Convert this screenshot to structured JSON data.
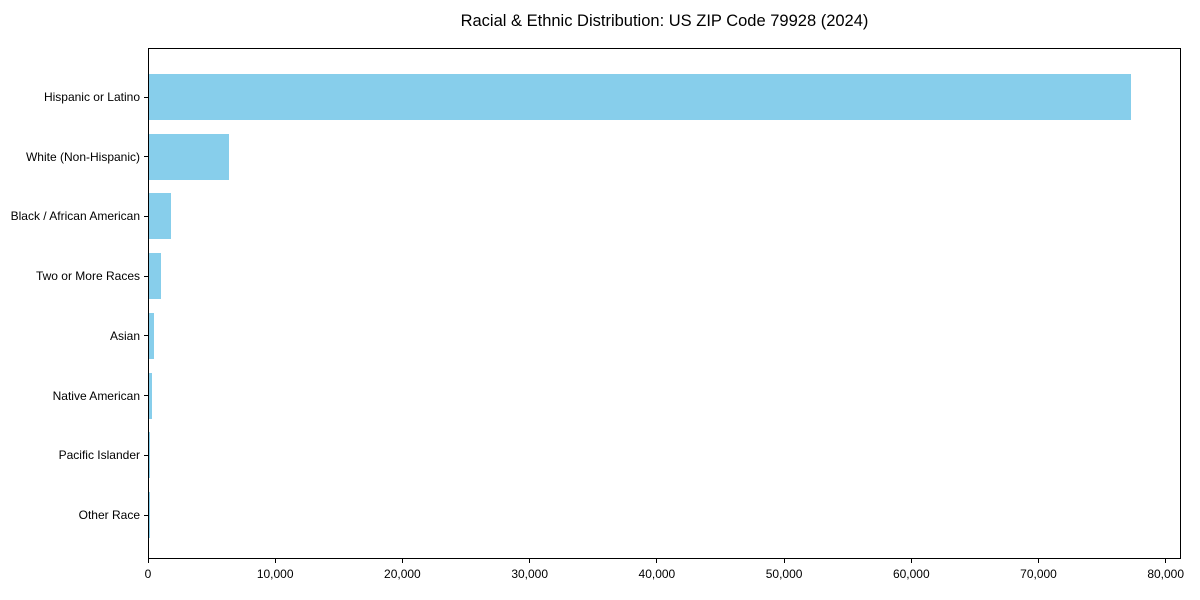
{
  "chart_data": {
    "type": "bar",
    "orientation": "horizontal",
    "title": "Racial & Ethnic Distribution: US ZIP Code 79928 (2024)",
    "categories": [
      "Hispanic or Latino",
      "White (Non-Hispanic)",
      "Black / African American",
      "Two or More Races",
      "Asian",
      "Native American",
      "Pacific Islander",
      "Other Race"
    ],
    "values": [
      77200,
      6250,
      1700,
      920,
      370,
      210,
      25,
      15
    ],
    "xlabel": "",
    "ylabel": "",
    "xlim": [
      0,
      81200
    ],
    "xticks": [
      0,
      10000,
      20000,
      30000,
      40000,
      50000,
      60000,
      70000,
      80000
    ],
    "xtick_labels": [
      "0",
      "10,000",
      "20,000",
      "30,000",
      "40,000",
      "50,000",
      "60,000",
      "70,000",
      "80,000"
    ],
    "bar_color": "#87CEEB",
    "spine_color": "#000000",
    "text_color": "#000000",
    "background_color": "#ffffff",
    "grid": false,
    "legend": null
  }
}
